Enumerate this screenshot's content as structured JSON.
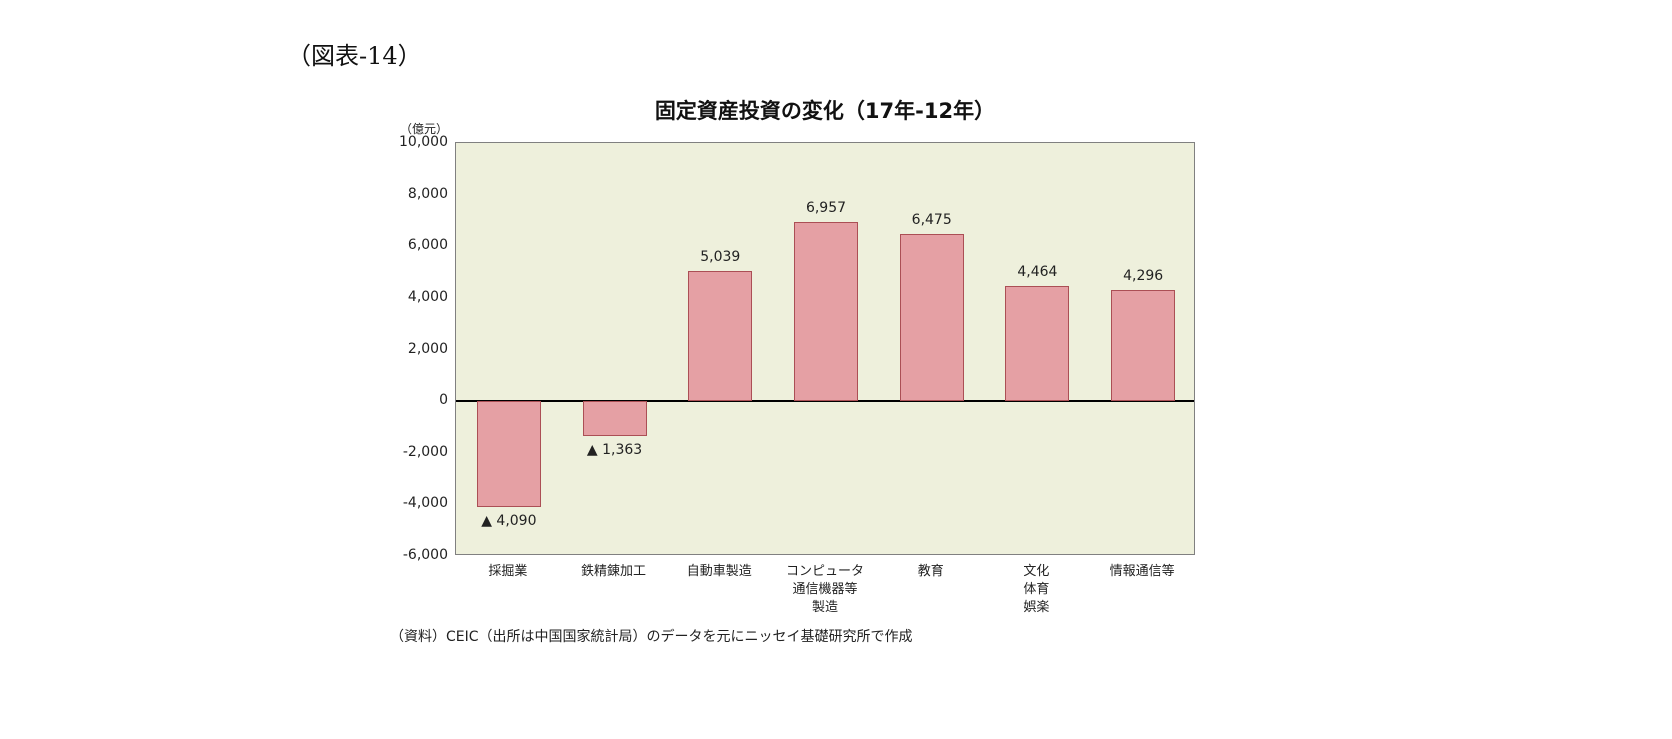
{
  "figure_label": "（図表-14）",
  "source_note": "（資料）CEIC（出所は中国国家統計局）のデータを元にニッセイ基礎研究所で作成",
  "chart_data": {
    "type": "bar",
    "title": "固定資産投資の変化（17年-12年）",
    "y_unit_label": "（億元）",
    "categories": [
      "採掘業",
      "鉄精錬加工",
      "自動車製造",
      "コンピュータ\n通信機器等\n製造",
      "教育",
      "文化\n体育\n娯楽",
      "情報通信等"
    ],
    "values": [
      -4090,
      -1363,
      5039,
      6957,
      6475,
      4464,
      4296
    ],
    "value_labels": [
      "▲ 4,090",
      "▲ 1,363",
      "5,039",
      "6,957",
      "6,475",
      "4,464",
      "4,296"
    ],
    "ylim": [
      -6000,
      10000
    ],
    "ytick_step": 2000,
    "ytick_labels": [
      "10,000",
      "8,000",
      "6,000",
      "4,000",
      "2,000",
      "0",
      "-2,000",
      "-4,000",
      "-6,000"
    ],
    "grid": false,
    "legend": "none",
    "colors": {
      "bar_fill": "#e5a0a4",
      "bar_border": "#ab4f55",
      "plot_bg": "#eef0dc",
      "plot_border": "#808080",
      "zero_line": "#000000"
    }
  }
}
